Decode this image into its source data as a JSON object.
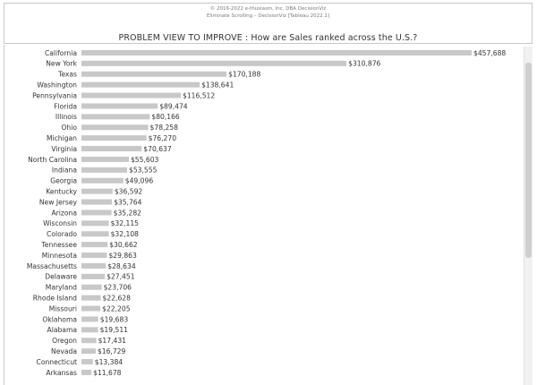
{
  "header": {
    "copyright": "© 2016-2022 e-thusiasm, Inc. DBA DecisionViz",
    "subtitle": "Eliminate Scrolling – DecisionViz [Tableau 2022.1]",
    "title": "PROBLEM VIEW TO IMPROVE : How are Sales ranked across the U.S.?"
  },
  "colors": {
    "bar": "#c8c8c8",
    "text": "#333333",
    "border": "#c9c9c9"
  },
  "chart_data": {
    "type": "bar",
    "orientation": "horizontal",
    "title": "PROBLEM VIEW TO IMPROVE : How are Sales ranked across the U.S.?",
    "xlabel": "",
    "ylabel": "",
    "categories": [
      "California",
      "New York",
      "Texas",
      "Washington",
      "Pennsylvania",
      "Florida",
      "Illinois",
      "Ohio",
      "Michigan",
      "Virginia",
      "North Carolina",
      "Indiana",
      "Georgia",
      "Kentucky",
      "New Jersey",
      "Arizona",
      "Wisconsin",
      "Colorado",
      "Tennessee",
      "Minnesota",
      "Massachusetts",
      "Delaware",
      "Maryland",
      "Rhode Island",
      "Missouri",
      "Oklahoma",
      "Alabama",
      "Oregon",
      "Nevada",
      "Connecticut",
      "Arkansas"
    ],
    "values": [
      457688,
      310876,
      170188,
      138641,
      116512,
      89474,
      80166,
      78258,
      76270,
      70637,
      55603,
      53555,
      49096,
      36592,
      35764,
      35282,
      32115,
      32108,
      30662,
      29863,
      28634,
      27451,
      23706,
      22628,
      22205,
      19683,
      19511,
      17431,
      16729,
      13384,
      11678
    ],
    "value_labels": [
      "$457,688",
      "$310,876",
      "$170,188",
      "$138,641",
      "$116,512",
      "$89,474",
      "$80,166",
      "$78,258",
      "$76,270",
      "$70,637",
      "$55,603",
      "$53,555",
      "$49,096",
      "$36,592",
      "$35,764",
      "$35,282",
      "$32,115",
      "$32,108",
      "$30,662",
      "$29,863",
      "$28,634",
      "$27,451",
      "$23,706",
      "$22,628",
      "$22,205",
      "$19,683",
      "$19,511",
      "$17,431",
      "$16,729",
      "$13,384",
      "$11,678"
    ],
    "xlim": [
      0,
      457688
    ],
    "grid": false,
    "legend": "none"
  }
}
